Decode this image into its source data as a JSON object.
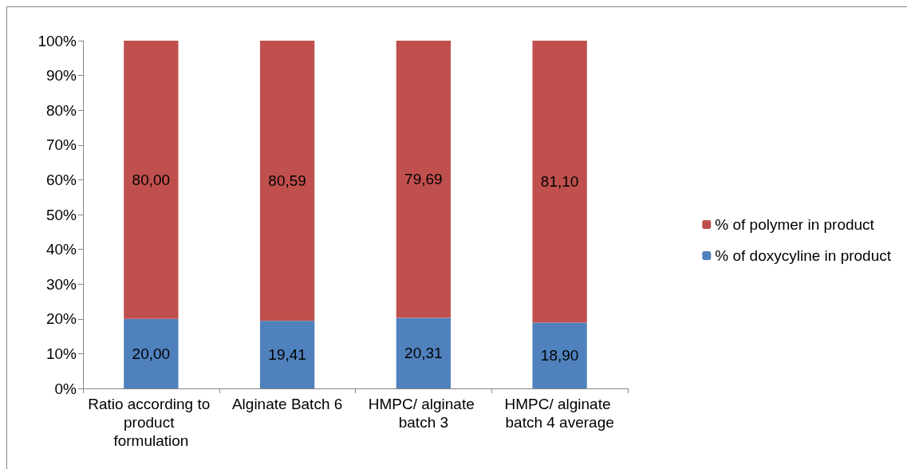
{
  "chart_data": {
    "type": "bar",
    "stacked": true,
    "categories": [
      "Ratio according to product formulation",
      "Alginate Batch 6",
      "HMPC/ alginate batch 3",
      "HMPC/ alginate batch 4 average"
    ],
    "series": [
      {
        "name": "% of doxycyline in product",
        "color": "#4f81bd",
        "values": [
          20.0,
          19.41,
          20.31,
          18.9
        ],
        "value_labels": [
          "20,00",
          "19,41",
          "20,31",
          "18,90"
        ]
      },
      {
        "name": "% of polymer in product",
        "color": "#c0504d",
        "values": [
          80.0,
          80.59,
          79.69,
          81.1
        ],
        "value_labels": [
          "80,00",
          "80,59",
          "79,69",
          "81,10"
        ]
      }
    ],
    "ylim": [
      0,
      100
    ],
    "yticks": [
      {
        "value": 0,
        "label": "0%"
      },
      {
        "value": 10,
        "label": "10%"
      },
      {
        "value": 20,
        "label": "20%"
      },
      {
        "value": 30,
        "label": "30%"
      },
      {
        "value": 40,
        "label": "40%"
      },
      {
        "value": 50,
        "label": "50%"
      },
      {
        "value": 60,
        "label": "60%"
      },
      {
        "value": 70,
        "label": "70%"
      },
      {
        "value": 80,
        "label": "80%"
      },
      {
        "value": 90,
        "label": "90%"
      },
      {
        "value": 100,
        "label": "100%"
      }
    ],
    "grid": false,
    "legend": "right"
  }
}
